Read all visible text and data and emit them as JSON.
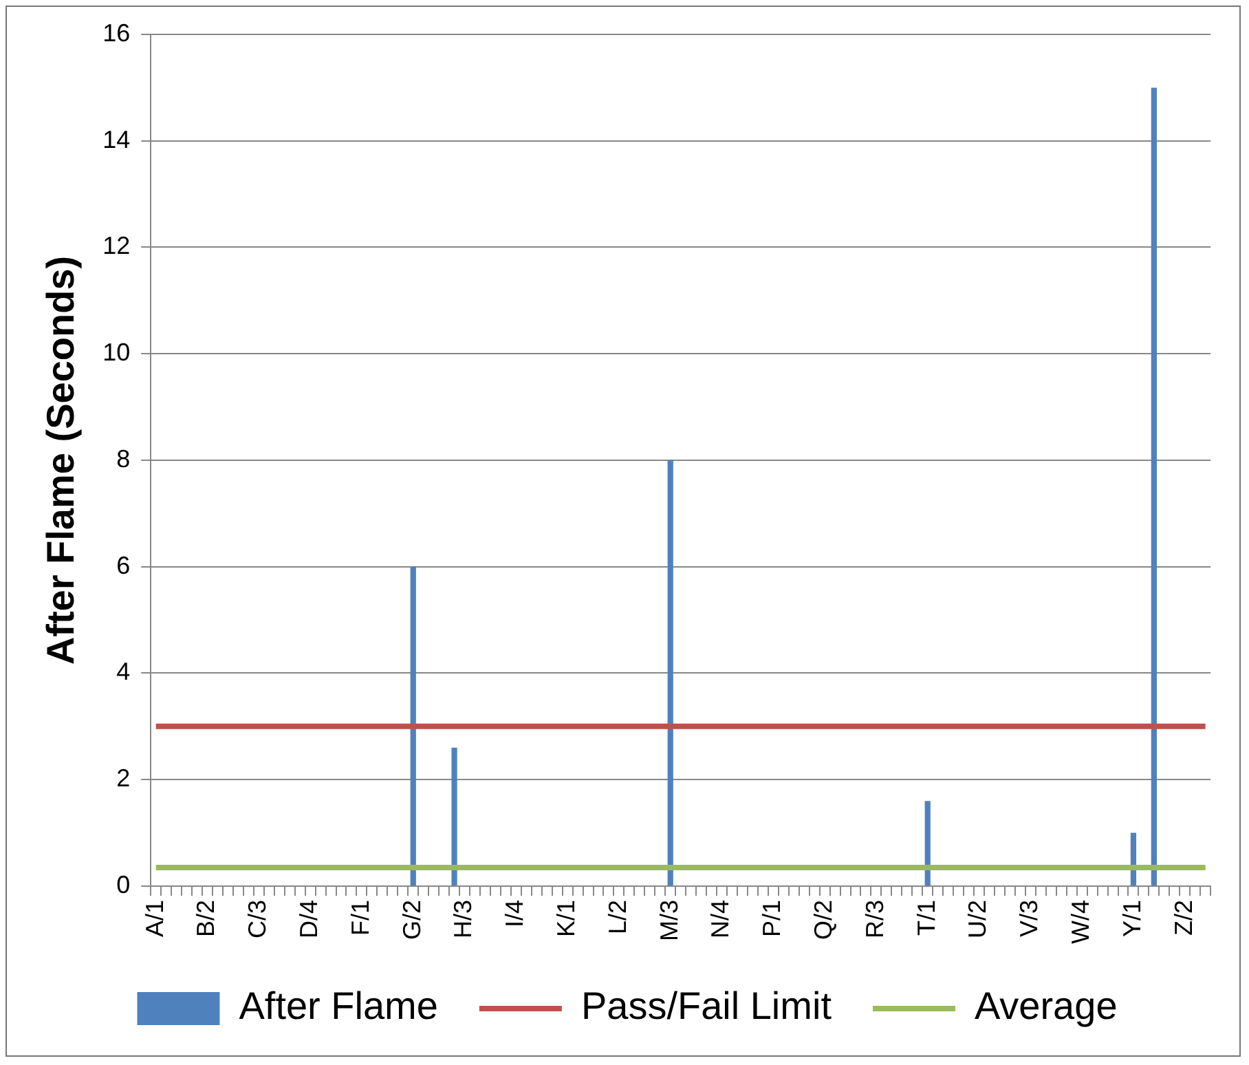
{
  "chart_data": {
    "type": "bar",
    "ylabel": "After Flame (Seconds)",
    "categories": [
      "A/1",
      null,
      null,
      null,
      null,
      "B/2",
      null,
      null,
      null,
      null,
      "C/3",
      null,
      null,
      null,
      null,
      "D/4",
      null,
      null,
      null,
      null,
      "F/1",
      null,
      null,
      null,
      null,
      "G/2",
      null,
      null,
      null,
      null,
      "H/3",
      null,
      null,
      null,
      null,
      "I/4",
      null,
      null,
      null,
      null,
      "K/1",
      null,
      null,
      null,
      null,
      "L/2",
      null,
      null,
      null,
      null,
      "M/3",
      null,
      null,
      null,
      null,
      "N/4",
      null,
      null,
      null,
      null,
      "P/1",
      null,
      null,
      null,
      null,
      "Q/2",
      null,
      null,
      null,
      null,
      "R/3",
      null,
      null,
      null,
      null,
      "T/1",
      null,
      null,
      null,
      null,
      "U/2",
      null,
      null,
      null,
      null,
      "V/3",
      null,
      null,
      null,
      null,
      "W/4",
      null,
      null,
      null,
      null,
      "Y/1",
      null,
      null,
      null,
      null,
      "Z/2",
      null,
      null
    ],
    "series": [
      {
        "name": "After Flame",
        "color": "#4f81bd",
        "values": [
          null,
          null,
          null,
          null,
          null,
          null,
          null,
          null,
          null,
          null,
          null,
          null,
          null,
          null,
          null,
          null,
          null,
          null,
          null,
          null,
          null,
          null,
          null,
          null,
          null,
          6,
          null,
          null,
          null,
          2.6,
          null,
          null,
          null,
          null,
          null,
          null,
          null,
          null,
          null,
          null,
          null,
          null,
          null,
          null,
          null,
          null,
          null,
          null,
          null,
          null,
          8,
          null,
          null,
          null,
          null,
          null,
          null,
          null,
          null,
          null,
          null,
          null,
          null,
          null,
          null,
          null,
          null,
          null,
          null,
          null,
          null,
          null,
          null,
          null,
          null,
          1.6,
          null,
          null,
          null,
          null,
          null,
          null,
          null,
          null,
          null,
          null,
          null,
          null,
          null,
          null,
          null,
          null,
          null,
          null,
          null,
          1,
          null,
          15,
          null,
          null,
          null,
          null,
          null
        ]
      },
      {
        "name": "Pass/Fail Limit",
        "type": "line",
        "color": "#c0504d",
        "values": [
          3,
          3,
          3,
          3,
          3,
          3,
          3,
          3,
          3,
          3,
          3,
          3,
          3,
          3,
          3,
          3,
          3,
          3,
          3,
          3,
          3,
          3,
          3,
          3,
          3,
          3,
          3,
          3,
          3,
          3,
          3,
          3,
          3,
          3,
          3,
          3,
          3,
          3,
          3,
          3,
          3,
          3,
          3,
          3,
          3,
          3,
          3,
          3,
          3,
          3,
          3,
          3,
          3,
          3,
          3,
          3,
          3,
          3,
          3,
          3,
          3,
          3,
          3,
          3,
          3,
          3,
          3,
          3,
          3,
          3,
          3,
          3,
          3,
          3,
          3,
          3,
          3,
          3,
          3,
          3,
          3,
          3,
          3,
          3,
          3,
          3,
          3,
          3,
          3,
          3,
          3,
          3,
          3,
          3,
          3,
          3,
          3,
          3,
          3,
          3,
          3,
          3,
          3
        ]
      },
      {
        "name": "Average",
        "type": "line",
        "color": "#9bbb59",
        "values": [
          0.35,
          0.35,
          0.35,
          0.35,
          0.35,
          0.35,
          0.35,
          0.35,
          0.35,
          0.35,
          0.35,
          0.35,
          0.35,
          0.35,
          0.35,
          0.35,
          0.35,
          0.35,
          0.35,
          0.35,
          0.35,
          0.35,
          0.35,
          0.35,
          0.35,
          0.35,
          0.35,
          0.35,
          0.35,
          0.35,
          0.35,
          0.35,
          0.35,
          0.35,
          0.35,
          0.35,
          0.35,
          0.35,
          0.35,
          0.35,
          0.35,
          0.35,
          0.35,
          0.35,
          0.35,
          0.35,
          0.35,
          0.35,
          0.35,
          0.35,
          0.35,
          0.35,
          0.35,
          0.35,
          0.35,
          0.35,
          0.35,
          0.35,
          0.35,
          0.35,
          0.35,
          0.35,
          0.35,
          0.35,
          0.35,
          0.35,
          0.35,
          0.35,
          0.35,
          0.35,
          0.35,
          0.35,
          0.35,
          0.35,
          0.35,
          0.35,
          0.35,
          0.35,
          0.35,
          0.35,
          0.35,
          0.35,
          0.35,
          0.35,
          0.35,
          0.35,
          0.35,
          0.35,
          0.35,
          0.35,
          0.35,
          0.35,
          0.35,
          0.35,
          0.35,
          0.35,
          0.35,
          0.35,
          0.35,
          0.35,
          0.35,
          0.35,
          0.35
        ]
      }
    ],
    "ylim": [
      0,
      16
    ],
    "yticks": [
      0,
      2,
      4,
      6,
      8,
      10,
      12,
      14,
      16
    ],
    "grid": "y",
    "legend": "bottom",
    "marker": "none"
  }
}
